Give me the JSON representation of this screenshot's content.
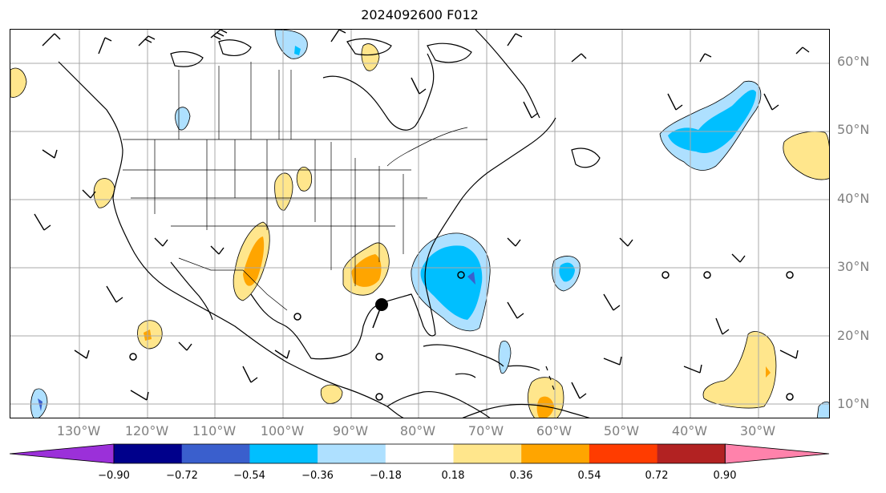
{
  "title": "2024092600 F012",
  "lat_labels": [
    "60°N",
    "50°N",
    "40°N",
    "30°N",
    "20°N",
    "10°N"
  ],
  "lon_labels": [
    "130°W",
    "120°W",
    "110°W",
    "100°W",
    "90°W",
    "80°W",
    "70°W",
    "60°W",
    "50°W",
    "40°W",
    "30°W"
  ],
  "colorbar": {
    "ticks": [
      "−0.90",
      "−0.72",
      "−0.54",
      "−0.36",
      "−0.18",
      "0.18",
      "0.36",
      "0.54",
      "0.72",
      "0.90"
    ],
    "colors": [
      "#9b30d9",
      "#00008b",
      "#3a5fcd",
      "#00bfff",
      "#aee0ff",
      "#ffffff",
      "#ffe68c",
      "#ffa500",
      "#ff3c00",
      "#b22222",
      "#ff82ab"
    ],
    "extend": "both"
  },
  "colors": {
    "gridline": "#a9a9a9",
    "coastline": "#000000",
    "contour_line": "#000000",
    "axis_label": "#808080"
  },
  "anomaly_regions": {
    "positive_colors": [
      "#ffe68c",
      "#ffa500"
    ],
    "negative_colors": [
      "#aee0ff",
      "#00bfff",
      "#3a5fcd"
    ]
  },
  "markers": {
    "storm_center": "large black dot in the central Gulf of Mexico"
  },
  "features": [
    "wind barbs",
    "coastlines",
    "state and country borders",
    "lat/lon grid",
    "shaded anomaly field with black contours"
  ]
}
